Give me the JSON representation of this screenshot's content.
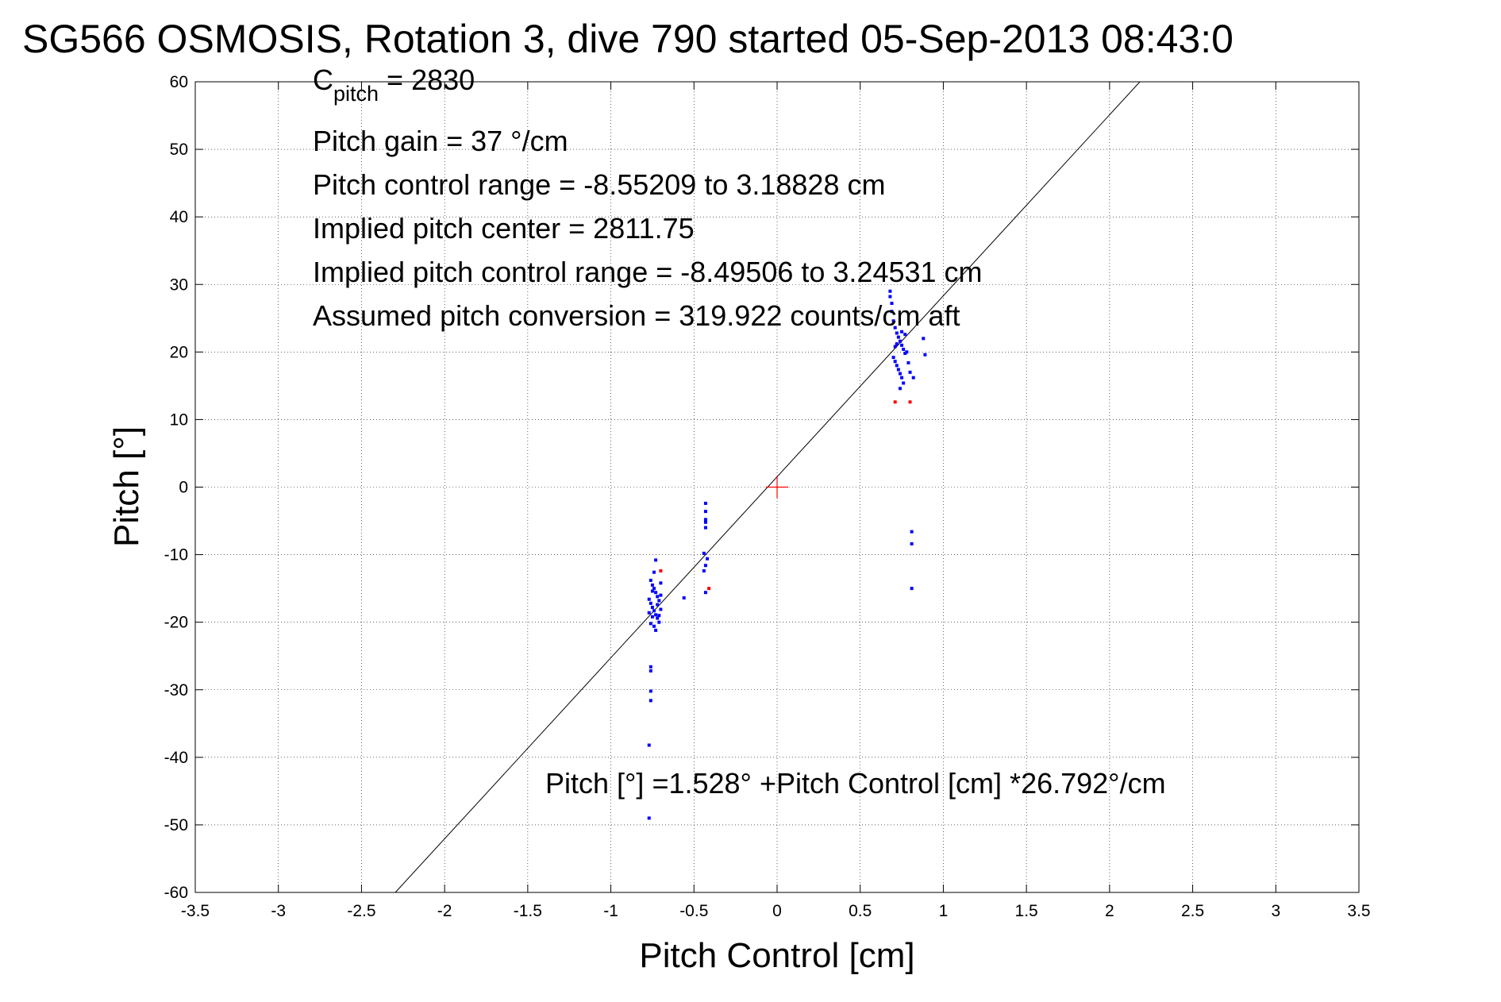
{
  "chart_data": {
    "type": "scatter",
    "title": "SG566 OSMOSIS, Rotation 3, dive 790 started 05-Sep-2013 08:43:0",
    "xlabel": "Pitch Control [cm]",
    "ylabel": "Pitch [°]",
    "xlim": [
      -3.5,
      3.5
    ],
    "ylim": [
      -60,
      60
    ],
    "xticks": [
      "-3.5",
      "-3",
      "-2.5",
      "-2",
      "-1.5",
      "-1",
      "-0.5",
      "0",
      "0.5",
      "1",
      "1.5",
      "2",
      "2.5",
      "3",
      "3.5"
    ],
    "yticks": [
      "60",
      "50",
      "40",
      "30",
      "20",
      "10",
      "0",
      "-10",
      "-20",
      "-30",
      "-40",
      "-50",
      "-60"
    ],
    "grid": true,
    "annotations": {
      "cpitch_base": "C",
      "cpitch_sub": "pitch",
      "cpitch_value": " = 2830",
      "pitch_gain": "Pitch gain = 37 °/cm",
      "control_range": "Pitch control range = -8.55209 to 3.18828 cm",
      "implied_center": "Implied pitch center = 2811.75",
      "implied_range": "Implied pitch control range = -8.49506 to 3.24531 cm",
      "conversion": "Assumed pitch conversion = 319.922 counts/cm aft",
      "fit_equation": "Pitch [°] =1.528° +Pitch Control [cm] *26.792°/cm"
    },
    "fit_line": {
      "intercept": 1.528,
      "slope": 26.792,
      "color": "#000000"
    },
    "center_marker": {
      "x": 0,
      "y": 0,
      "color": "#ff0000"
    },
    "series": [
      {
        "color": "#0000ff",
        "points": [
          [
            -0.76,
            -13.8
          ],
          [
            -0.75,
            -14.5
          ],
          [
            -0.74,
            -15.0
          ],
          [
            -0.73,
            -15.6
          ],
          [
            -0.72,
            -16.2
          ],
          [
            -0.71,
            -16.8
          ],
          [
            -0.76,
            -17.2
          ],
          [
            -0.75,
            -17.8
          ],
          [
            -0.74,
            -18.3
          ],
          [
            -0.73,
            -18.9
          ],
          [
            -0.72,
            -19.4
          ],
          [
            -0.71,
            -20.0
          ],
          [
            -0.7,
            -16.0
          ],
          [
            -0.74,
            -20.6
          ],
          [
            -0.73,
            -21.2
          ],
          [
            -0.75,
            -19.2
          ],
          [
            -0.77,
            -16.6
          ],
          [
            -0.77,
            -18.6
          ],
          [
            -0.7,
            -18.1
          ],
          [
            -0.72,
            -17.4
          ],
          [
            -0.74,
            -12.6
          ],
          [
            -0.73,
            -10.8
          ],
          [
            -0.7,
            -14.2
          ],
          [
            -0.71,
            -19.0
          ],
          [
            -0.76,
            -20.2
          ],
          [
            -0.75,
            -15.4
          ],
          [
            -0.76,
            -26.6
          ],
          [
            -0.76,
            -27.2
          ],
          [
            -0.76,
            -30.2
          ],
          [
            -0.76,
            -31.6
          ],
          [
            -0.77,
            -38.2
          ],
          [
            -0.77,
            -49.0
          ],
          [
            -0.56,
            -16.4
          ],
          [
            -0.43,
            -2.4
          ],
          [
            -0.43,
            -3.6
          ],
          [
            -0.43,
            -4.8
          ],
          [
            -0.43,
            -5.2
          ],
          [
            -0.43,
            -6.0
          ],
          [
            -0.44,
            -9.8
          ],
          [
            -0.42,
            -10.6
          ],
          [
            -0.43,
            -11.6
          ],
          [
            -0.44,
            -12.4
          ],
          [
            -0.43,
            -15.6
          ],
          [
            0.68,
            29.0
          ],
          [
            0.68,
            28.2
          ],
          [
            0.69,
            27.2
          ],
          [
            0.69,
            26.0
          ],
          [
            0.7,
            24.6
          ],
          [
            0.71,
            23.6
          ],
          [
            0.72,
            22.8
          ],
          [
            0.73,
            22.2
          ],
          [
            0.74,
            21.6
          ],
          [
            0.75,
            21.0
          ],
          [
            0.76,
            20.4
          ],
          [
            0.77,
            19.8
          ],
          [
            0.7,
            19.2
          ],
          [
            0.71,
            18.6
          ],
          [
            0.72,
            18.0
          ],
          [
            0.73,
            17.4
          ],
          [
            0.74,
            16.8
          ],
          [
            0.75,
            16.2
          ],
          [
            0.76,
            15.4
          ],
          [
            0.74,
            14.6
          ],
          [
            0.78,
            20.0
          ],
          [
            0.79,
            18.4
          ],
          [
            0.8,
            17.0
          ],
          [
            0.82,
            16.2
          ],
          [
            0.88,
            22.0
          ],
          [
            0.89,
            19.6
          ],
          [
            0.72,
            21.2
          ],
          [
            0.71,
            20.8
          ],
          [
            0.75,
            23.0
          ],
          [
            0.77,
            22.6
          ],
          [
            0.81,
            -6.6
          ],
          [
            0.81,
            -8.4
          ],
          [
            0.81,
            -15.0
          ]
        ]
      },
      {
        "color": "#ff0000",
        "points": [
          [
            -0.7,
            -12.4
          ],
          [
            -0.41,
            -15.0
          ],
          [
            0.71,
            12.6
          ],
          [
            0.8,
            12.6
          ]
        ]
      }
    ]
  }
}
